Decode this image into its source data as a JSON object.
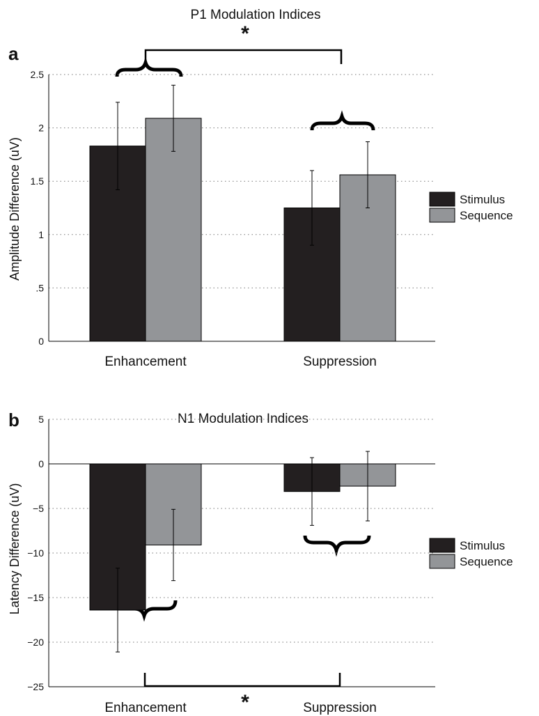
{
  "colors": {
    "stimulus": "#231f20",
    "sequence": "#939598",
    "axis": "#000000",
    "grid": "#777777"
  },
  "chart_data": [
    {
      "type": "bar",
      "panel": "a",
      "title": "P1 Modulation Indices",
      "ylabel": "Amplitude Difference (uV)",
      "xlabel": "",
      "categories": [
        "Enhancement",
        "Suppression"
      ],
      "ylim": [
        0,
        2.5
      ],
      "yticks": [
        0,
        0.5,
        1,
        1.5,
        2,
        2.5
      ],
      "ytick_labels": [
        "0",
        ".5",
        "1",
        "1.5",
        "2",
        "2.5"
      ],
      "grid": "horizontal dotted",
      "legend_position": "right",
      "series": [
        {
          "name": "Stimulus",
          "values": [
            1.83,
            1.25
          ],
          "errors": [
            0.41,
            0.35
          ]
        },
        {
          "name": "Sequence",
          "values": [
            2.09,
            1.56
          ],
          "errors": [
            0.31,
            0.31
          ]
        }
      ],
      "annotations": {
        "significance_marker": "*"
      }
    },
    {
      "type": "bar",
      "panel": "b",
      "title": "N1 Modulation Indices",
      "ylabel": "Latency Difference (uV)",
      "xlabel": "",
      "categories": [
        "Enhancement",
        "Suppression"
      ],
      "ylim": [
        -25,
        5
      ],
      "yticks": [
        -25,
        -20,
        -15,
        -10,
        -5,
        0,
        5
      ],
      "ytick_labels": [
        "−25",
        "−20",
        "−15",
        "−10",
        "−5",
        "0",
        "5"
      ],
      "grid": "horizontal dotted",
      "legend_position": "right",
      "series": [
        {
          "name": "Stimulus",
          "values": [
            -16.4,
            -3.1
          ],
          "errors": [
            4.7,
            3.8
          ]
        },
        {
          "name": "Sequence",
          "values": [
            -9.1,
            -2.5
          ],
          "errors": [
            4.0,
            3.9
          ]
        }
      ],
      "annotations": {
        "significance_marker": "*"
      }
    }
  ]
}
